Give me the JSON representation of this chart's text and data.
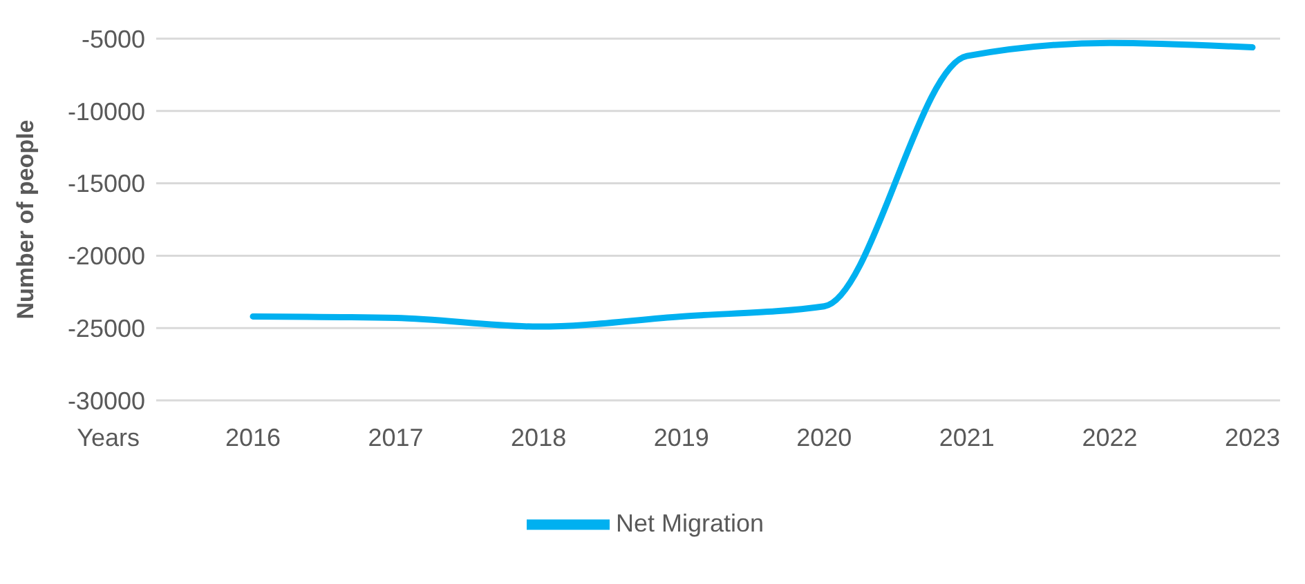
{
  "chart_data": {
    "type": "line",
    "xlabel": "Years",
    "ylabel": "Number of people",
    "categories": [
      "2016",
      "2017",
      "2018",
      "2019",
      "2020",
      "2021",
      "2022",
      "2023"
    ],
    "series": [
      {
        "name": "Net Migration",
        "color": "#00b0f0",
        "values": [
          -24200,
          -24300,
          -24900,
          -24200,
          -23500,
          -6200,
          -5300,
          -5600
        ]
      }
    ],
    "ylim": [
      -30000,
      -5000
    ],
    "yticks": [
      -30000,
      -25000,
      -20000,
      -15000,
      -10000,
      -5000
    ],
    "grid": "y",
    "legend": "bottom",
    "marker": "none",
    "line_style": "solid"
  }
}
